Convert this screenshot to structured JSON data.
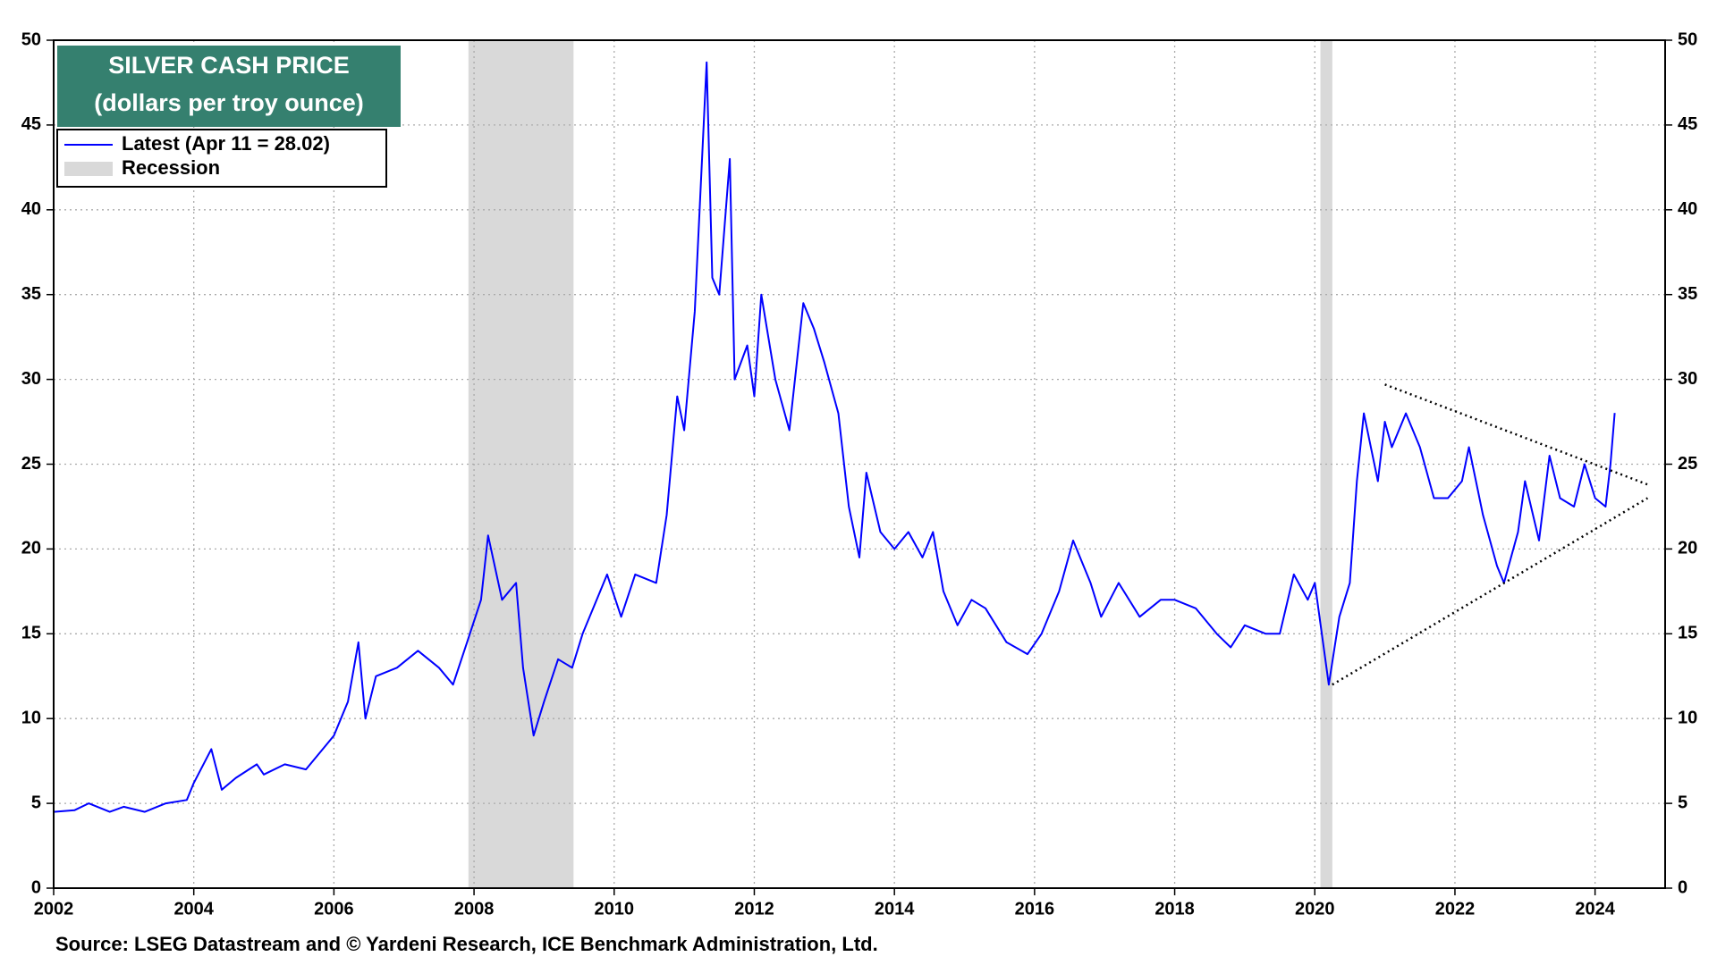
{
  "chart_data": {
    "type": "line",
    "title": "SILVER CASH PRICE",
    "subtitle": "(dollars per troy ounce)",
    "source": "Source: LSEG Datastream and © Yardeni Research, ICE Benchmark Administration, Ltd.",
    "x": [
      2002.0,
      2002.3,
      2002.5,
      2002.8,
      2003.0,
      2003.3,
      2003.6,
      2003.9,
      2004.0,
      2004.25,
      2004.4,
      2004.6,
      2004.9,
      2005.0,
      2005.3,
      2005.6,
      2005.9,
      2006.0,
      2006.2,
      2006.35,
      2006.45,
      2006.6,
      2006.9,
      2007.2,
      2007.5,
      2007.7,
      2007.9,
      2008.1,
      2008.2,
      2008.4,
      2008.6,
      2008.7,
      2008.85,
      2009.0,
      2009.2,
      2009.4,
      2009.55,
      2009.8,
      2009.9,
      2010.1,
      2010.3,
      2010.6,
      2010.75,
      2010.9,
      2011.0,
      2011.15,
      2011.32,
      2011.4,
      2011.5,
      2011.65,
      2011.72,
      2011.9,
      2012.0,
      2012.1,
      2012.3,
      2012.5,
      2012.7,
      2012.85,
      2013.0,
      2013.2,
      2013.35,
      2013.5,
      2013.6,
      2013.8,
      2014.0,
      2014.2,
      2014.4,
      2014.55,
      2014.7,
      2014.9,
      2015.1,
      2015.3,
      2015.6,
      2015.9,
      2016.1,
      2016.35,
      2016.55,
      2016.8,
      2016.95,
      2017.2,
      2017.5,
      2017.8,
      2018.0,
      2018.3,
      2018.6,
      2018.8,
      2019.0,
      2019.3,
      2019.5,
      2019.7,
      2019.9,
      2020.0,
      2020.2,
      2020.35,
      2020.5,
      2020.6,
      2020.7,
      2020.9,
      2021.0,
      2021.1,
      2021.3,
      2021.5,
      2021.7,
      2021.9,
      2022.1,
      2022.2,
      2022.4,
      2022.6,
      2022.7,
      2022.9,
      2023.0,
      2023.2,
      2023.35,
      2023.5,
      2023.7,
      2023.85,
      2024.0,
      2024.15,
      2024.22,
      2024.28
    ],
    "series": [
      {
        "name": "Latest (Apr 11 = 28.02)",
        "color": "#0000ff",
        "values": [
          4.5,
          4.6,
          5.0,
          4.5,
          4.8,
          4.5,
          5.0,
          5.2,
          6.2,
          8.2,
          5.8,
          6.5,
          7.3,
          6.7,
          7.3,
          7.0,
          8.5,
          9.0,
          11.0,
          14.5,
          10.0,
          12.5,
          13.0,
          14.0,
          13.0,
          12.0,
          14.5,
          17.0,
          20.8,
          17.0,
          18.0,
          13.0,
          9.0,
          11.0,
          13.5,
          13.0,
          15.0,
          17.5,
          18.5,
          16.0,
          18.5,
          18.0,
          22.0,
          29.0,
          27.0,
          34.0,
          48.7,
          36.0,
          35.0,
          43.0,
          30.0,
          32.0,
          29.0,
          35.0,
          30.0,
          27.0,
          34.5,
          33.0,
          31.0,
          28.0,
          22.5,
          19.5,
          24.5,
          21.0,
          20.0,
          21.0,
          19.5,
          21.0,
          17.5,
          15.5,
          17.0,
          16.5,
          14.5,
          13.8,
          15.0,
          17.5,
          20.5,
          18.0,
          16.0,
          18.0,
          16.0,
          17.0,
          17.0,
          16.5,
          15.0,
          14.2,
          15.5,
          15.0,
          15.0,
          18.5,
          17.0,
          18.0,
          12.0,
          16.0,
          18.0,
          24.0,
          28.0,
          24.0,
          27.5,
          26.0,
          28.0,
          26.0,
          23.0,
          23.0,
          24.0,
          26.0,
          22.0,
          19.0,
          18.0,
          21.0,
          24.0,
          20.5,
          25.5,
          23.0,
          22.5,
          25.0,
          23.0,
          22.5,
          25.0,
          28.02
        ]
      }
    ],
    "recessions": {
      "name": "Recession",
      "color": "#d9d9d9",
      "spans": [
        [
          2007.92,
          2009.42
        ],
        [
          2020.08,
          2020.25
        ]
      ]
    },
    "trendlines": [
      {
        "x": [
          2021.0,
          2024.75
        ],
        "y": [
          29.7,
          23.8
        ]
      },
      {
        "x": [
          2020.25,
          2024.75
        ],
        "y": [
          12.0,
          23.0
        ]
      }
    ],
    "xlim": [
      2002,
      2025
    ],
    "xticks": [
      2002,
      2004,
      2006,
      2008,
      2010,
      2012,
      2014,
      2016,
      2018,
      2020,
      2022,
      2024
    ],
    "ylim": [
      0,
      50
    ],
    "yticks": [
      0,
      5,
      10,
      15,
      20,
      25,
      30,
      35,
      40,
      45,
      50
    ],
    "y2lim": [
      0,
      50
    ],
    "y2ticks": [
      0,
      5,
      10,
      15,
      20,
      25,
      30,
      35,
      40,
      45,
      50
    ],
    "grid": true
  }
}
